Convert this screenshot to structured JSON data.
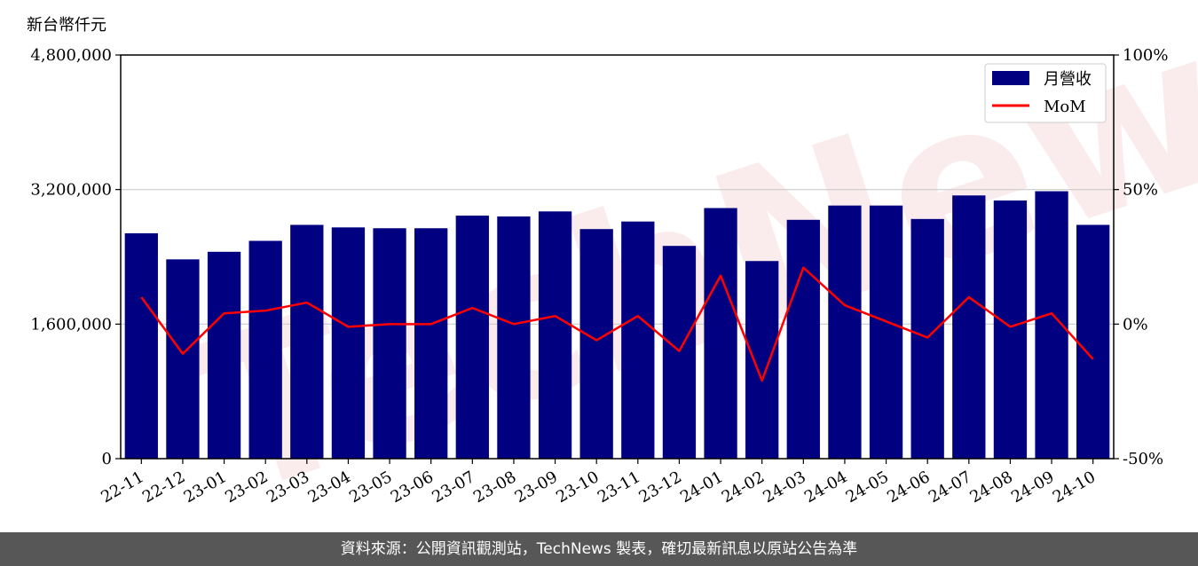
{
  "chart_data": {
    "type": "bar",
    "unit_label": "新台幣仟元",
    "categories": [
      "22-11",
      "22-12",
      "23-01",
      "23-02",
      "23-03",
      "23-04",
      "23-05",
      "23-06",
      "23-07",
      "23-08",
      "23-09",
      "23-10",
      "23-11",
      "23-12",
      "24-01",
      "24-02",
      "24-03",
      "24-04",
      "24-05",
      "24-06",
      "24-07",
      "24-08",
      "24-09",
      "24-10"
    ],
    "series": [
      {
        "name": "月營收",
        "axis": "left",
        "type": "bar",
        "color": "#000080",
        "values": [
          2680000,
          2370000,
          2460000,
          2590000,
          2780000,
          2750000,
          2740000,
          2740000,
          2890000,
          2880000,
          2940000,
          2730000,
          2820000,
          2530000,
          2980000,
          2350000,
          2840000,
          3010000,
          3010000,
          2850000,
          3130000,
          3070000,
          3180000,
          2780000
        ]
      },
      {
        "name": "MoM",
        "axis": "right",
        "type": "line",
        "color": "#ff0000",
        "values": [
          10,
          -11,
          4,
          5,
          8,
          -1,
          0,
          0,
          6,
          0,
          3,
          -6,
          3,
          -10,
          18,
          -21,
          21,
          7,
          1,
          -5,
          10,
          -1,
          4,
          -13
        ]
      }
    ],
    "y_left": {
      "min": 0,
      "max": 4800000,
      "ticks": [
        "0",
        "1,600,000",
        "3,200,000",
        "4,800,000"
      ],
      "tick_values": [
        0,
        1600000,
        3200000,
        4800000
      ]
    },
    "y_right": {
      "min": -50,
      "max": 100,
      "ticks": [
        "-50%",
        "0%",
        "50%",
        "100%"
      ],
      "tick_values": [
        -50,
        0,
        50,
        100
      ]
    },
    "grid": "horizontal",
    "legend_position": "top-right",
    "watermark": "TechNews"
  },
  "footer": "資料來源：公開資訊觀測站，TechNews 製表，確切最新訊息以原站公告為準"
}
